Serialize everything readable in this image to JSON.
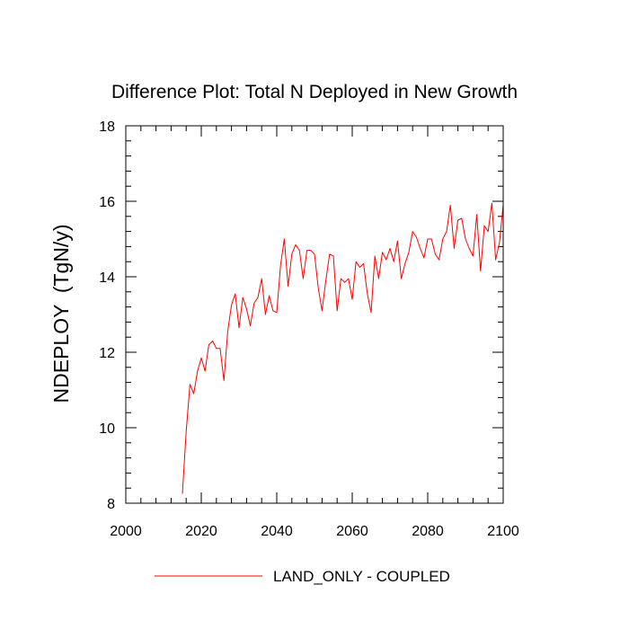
{
  "chart_data": {
    "type": "line",
    "title": "Difference Plot: Total N Deployed in New Growth",
    "xlabel": "",
    "ylabel": "NDEPLOY  (TgN/y)",
    "xlim": [
      2000,
      2100
    ],
    "ylim": [
      8,
      18
    ],
    "xticks": [
      2000,
      2020,
      2040,
      2060,
      2080,
      2100
    ],
    "yticks": [
      8,
      10,
      12,
      14,
      16,
      18
    ],
    "xtick_labels": [
      "2000",
      "2020",
      "2040",
      "2060",
      "2080",
      "2100"
    ],
    "ytick_labels": [
      "8",
      "10",
      "12",
      "14",
      "16",
      "18"
    ],
    "x_minor_step": 4,
    "y_minor_step": 0.4,
    "grid": false,
    "legend_position": "bottom-center",
    "series": [
      {
        "name": "LAND_ONLY - COUPLED",
        "color": "#ff0000",
        "x": [
          2015,
          2016,
          2017,
          2018,
          2019,
          2020,
          2021,
          2022,
          2023,
          2024,
          2025,
          2026,
          2027,
          2028,
          2029,
          2030,
          2031,
          2032,
          2033,
          2034,
          2035,
          2036,
          2037,
          2038,
          2039,
          2040,
          2041,
          2042,
          2043,
          2044,
          2045,
          2046,
          2047,
          2048,
          2049,
          2050,
          2051,
          2052,
          2053,
          2054,
          2055,
          2056,
          2057,
          2058,
          2059,
          2060,
          2061,
          2062,
          2063,
          2064,
          2065,
          2066,
          2067,
          2068,
          2069,
          2070,
          2071,
          2072,
          2073,
          2074,
          2075,
          2076,
          2077,
          2078,
          2079,
          2080,
          2081,
          2082,
          2083,
          2084,
          2085,
          2086,
          2087,
          2088,
          2089,
          2090,
          2091,
          2092,
          2093,
          2094,
          2095,
          2096,
          2097,
          2098,
          2099,
          2100
        ],
        "values": [
          8.25,
          9.9,
          11.15,
          10.9,
          11.5,
          11.85,
          11.5,
          12.2,
          12.3,
          12.1,
          12.1,
          11.25,
          12.55,
          13.25,
          13.55,
          12.65,
          13.45,
          13.15,
          12.7,
          13.3,
          13.45,
          13.95,
          13.0,
          13.5,
          13.1,
          13.05,
          14.3,
          15.0,
          13.75,
          14.6,
          14.85,
          14.7,
          13.95,
          14.7,
          14.7,
          14.6,
          13.7,
          13.1,
          13.9,
          14.6,
          14.55,
          13.1,
          13.95,
          13.85,
          13.95,
          13.4,
          14.4,
          14.25,
          14.35,
          13.55,
          13.05,
          14.55,
          13.95,
          14.65,
          14.45,
          14.75,
          14.4,
          14.95,
          13.95,
          14.35,
          14.65,
          15.2,
          15.05,
          14.75,
          14.5,
          15.0,
          15.0,
          14.6,
          14.45,
          15.0,
          15.2,
          15.9,
          14.75,
          15.5,
          15.55,
          15.0,
          14.75,
          14.55,
          15.65,
          14.15,
          15.35,
          15.2,
          15.95,
          14.45,
          14.9,
          15.9
        ]
      }
    ]
  }
}
